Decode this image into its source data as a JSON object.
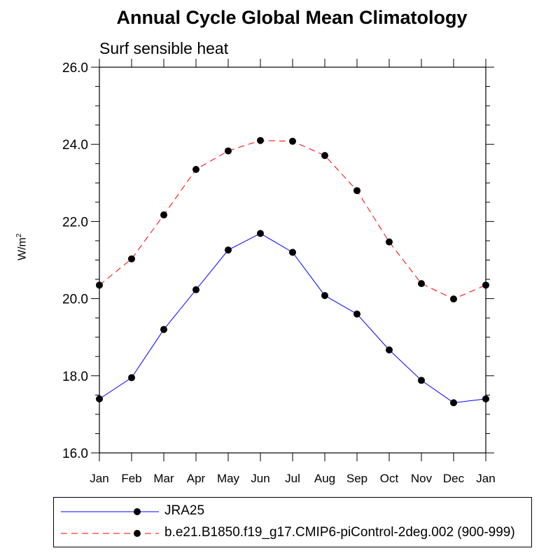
{
  "chart_data": {
    "type": "line",
    "title": "Annual Cycle Global Mean Climatology",
    "subtitle": "Surf sensible heat",
    "ylabel": "W/m",
    "ylabel_sup": "2",
    "ylim": [
      16.0,
      26.0
    ],
    "yticks": [
      "16.0",
      "18.0",
      "20.0",
      "22.0",
      "24.0",
      "26.0"
    ],
    "categories": [
      "Jan",
      "Feb",
      "Mar",
      "Apr",
      "May",
      "Jun",
      "Jul",
      "Aug",
      "Sep",
      "Oct",
      "Nov",
      "Dec",
      "Jan"
    ],
    "grid": false,
    "legend_position": "bottom",
    "series": [
      {
        "name": "JRA25",
        "color": "#0000ff",
        "dash": "solid",
        "values": [
          17.4,
          17.95,
          19.2,
          20.23,
          21.26,
          21.69,
          21.2,
          20.08,
          19.6,
          18.67,
          17.88,
          17.3,
          17.4
        ]
      },
      {
        "name": "b.e21.B1850.f19_g17.CMIP6-piControl-2deg.002 (900-999)",
        "color": "#ff0000",
        "dash": "dashed",
        "values": [
          20.35,
          21.03,
          22.17,
          23.35,
          23.83,
          24.1,
          24.08,
          23.71,
          22.8,
          21.47,
          20.39,
          19.99,
          20.35
        ]
      }
    ]
  }
}
